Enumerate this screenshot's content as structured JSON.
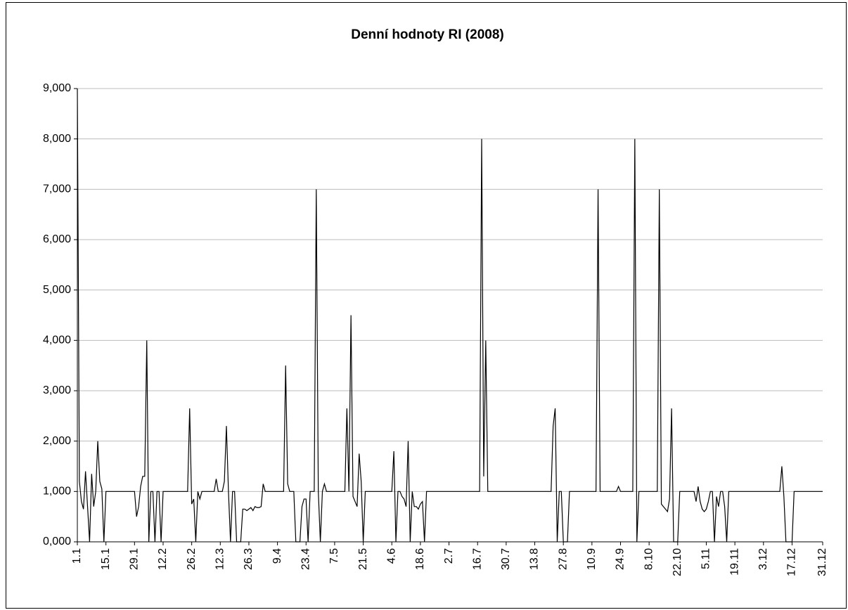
{
  "chart_data": {
    "type": "line",
    "title": "Denní hodnoty RI (2008)",
    "categories": [
      "1.1",
      null,
      null,
      null,
      null,
      null,
      null,
      null,
      null,
      null,
      null,
      null,
      null,
      null,
      "15.1",
      null,
      null,
      null,
      null,
      null,
      null,
      null,
      null,
      null,
      null,
      null,
      null,
      null,
      "29.1",
      null,
      null,
      null,
      null,
      null,
      null,
      null,
      null,
      null,
      null,
      null,
      null,
      null,
      "12.2",
      null,
      null,
      null,
      null,
      null,
      null,
      null,
      null,
      null,
      null,
      null,
      null,
      null,
      "26.2",
      null,
      null,
      null,
      null,
      null,
      null,
      null,
      null,
      null,
      null,
      null,
      null,
      null,
      "12.3",
      null,
      null,
      null,
      null,
      null,
      null,
      null,
      null,
      null,
      null,
      null,
      null,
      null,
      "26.3",
      null,
      null,
      null,
      null,
      null,
      null,
      null,
      null,
      null,
      null,
      null,
      null,
      null,
      "9.4",
      null,
      null,
      null,
      null,
      null,
      null,
      null,
      null,
      null,
      null,
      null,
      null,
      null,
      "23.4",
      null,
      null,
      null,
      null,
      null,
      null,
      null,
      null,
      null,
      null,
      null,
      null,
      null,
      "7.5",
      null,
      null,
      null,
      null,
      null,
      null,
      null,
      null,
      null,
      null,
      null,
      null,
      null,
      "21.5",
      null,
      null,
      null,
      null,
      null,
      null,
      null,
      null,
      null,
      null,
      null,
      null,
      null,
      "4.6",
      null,
      null,
      null,
      null,
      null,
      null,
      null,
      null,
      null,
      null,
      null,
      null,
      null,
      "18.6",
      null,
      null,
      null,
      null,
      null,
      null,
      null,
      null,
      null,
      null,
      null,
      null,
      null,
      "2.7",
      null,
      null,
      null,
      null,
      null,
      null,
      null,
      null,
      null,
      null,
      null,
      null,
      null,
      "16.7",
      null,
      null,
      null,
      null,
      null,
      null,
      null,
      null,
      null,
      null,
      null,
      null,
      null,
      "30.7",
      null,
      null,
      null,
      null,
      null,
      null,
      null,
      null,
      null,
      null,
      null,
      null,
      null,
      "13.8",
      null,
      null,
      null,
      null,
      null,
      null,
      null,
      null,
      null,
      null,
      null,
      null,
      null,
      "27.8",
      null,
      null,
      null,
      null,
      null,
      null,
      null,
      null,
      null,
      null,
      null,
      null,
      null,
      "10.9",
      null,
      null,
      null,
      null,
      null,
      null,
      null,
      null,
      null,
      null,
      null,
      null,
      null,
      "24.9",
      null,
      null,
      null,
      null,
      null,
      null,
      null,
      null,
      null,
      null,
      null,
      null,
      null,
      "8.10",
      null,
      null,
      null,
      null,
      null,
      null,
      null,
      null,
      null,
      null,
      null,
      null,
      null,
      "22.10",
      null,
      null,
      null,
      null,
      null,
      null,
      null,
      null,
      null,
      null,
      null,
      null,
      null,
      "5.11",
      null,
      null,
      null,
      null,
      null,
      null,
      null,
      null,
      null,
      null,
      null,
      null,
      null,
      "19.11",
      null,
      null,
      null,
      null,
      null,
      null,
      null,
      null,
      null,
      null,
      null,
      null,
      null,
      "3.12",
      null,
      null,
      null,
      null,
      null,
      null,
      null,
      null,
      null,
      null,
      null,
      null,
      null,
      "17.12",
      null,
      null,
      null,
      null,
      null,
      null,
      null,
      null,
      null,
      null,
      null,
      null,
      null,
      null,
      "31.12"
    ],
    "values": [
      9,
      1.2,
      0.8,
      0.65,
      1.4,
      0.7,
      0,
      1.35,
      0.7,
      1,
      2,
      1.2,
      1.05,
      0,
      1,
      1,
      1,
      1,
      1,
      1,
      1,
      1,
      1,
      1,
      1,
      1,
      1,
      1,
      1,
      0.5,
      0.7,
      1.1,
      1.3,
      1.3,
      4,
      0,
      1,
      1,
      0,
      1,
      1,
      0,
      1,
      1,
      1,
      1,
      1,
      1,
      1,
      1,
      1,
      1,
      1,
      1,
      1,
      2.65,
      0.75,
      0.85,
      0,
      1,
      0.85,
      1,
      1,
      1,
      1,
      1,
      1,
      1,
      1.25,
      1,
      1,
      1,
      1.2,
      2.3,
      1,
      0,
      1,
      1,
      0,
      0,
      0,
      0.65,
      0.65,
      0.62,
      0.65,
      0.68,
      0.62,
      0.7,
      0.68,
      0.68,
      0.7,
      1.15,
      1,
      1,
      1,
      1,
      1,
      1,
      1,
      1,
      1,
      1,
      3.5,
      1.15,
      1,
      1,
      1,
      0,
      0,
      0,
      0.7,
      0.85,
      0.85,
      0,
      1,
      1,
      1,
      7,
      1,
      0,
      1,
      1.15,
      1,
      1,
      1,
      1,
      1,
      1,
      1,
      1,
      1,
      1,
      2.65,
      1,
      4.5,
      0.9,
      0.8,
      0.7,
      1.75,
      1.2,
      0,
      1,
      1,
      1,
      1,
      1,
      1,
      1,
      1,
      1,
      1,
      1,
      1,
      1,
      1,
      1.8,
      0,
      1,
      1,
      0.9,
      0.85,
      0.7,
      2,
      0,
      1,
      0.7,
      0.7,
      0.65,
      0.75,
      0.8,
      0,
      1,
      1,
      1,
      1,
      1,
      1,
      1,
      1,
      1,
      1,
      1,
      1,
      1,
      1,
      1,
      1,
      1,
      1,
      1,
      1,
      1,
      1,
      1,
      1,
      1,
      1,
      1,
      8,
      1.3,
      4,
      1,
      1,
      1,
      1,
      1,
      1,
      1,
      1,
      1,
      1,
      1,
      1,
      1,
      1,
      1,
      1,
      1,
      1,
      1,
      1,
      1,
      1,
      1,
      1,
      1,
      1,
      1,
      1,
      1,
      1,
      1,
      1,
      2.3,
      2.65,
      0,
      1,
      1,
      0,
      0,
      0,
      1,
      1,
      1,
      1,
      1,
      1,
      1,
      1,
      1,
      1,
      1,
      1,
      1,
      1,
      7,
      1,
      1,
      1,
      1,
      1,
      1,
      1,
      1,
      1,
      1.1,
      1,
      1,
      1,
      1,
      1,
      1,
      1,
      8,
      0,
      1,
      1,
      1,
      1,
      1,
      1,
      1,
      1,
      1,
      1,
      7,
      0.75,
      0.7,
      0.65,
      0.6,
      0.85,
      2.65,
      0,
      0,
      0,
      1,
      1,
      1,
      1,
      1,
      1,
      1,
      1,
      0.8,
      1.1,
      0.8,
      0.65,
      0.6,
      0.65,
      0.8,
      1,
      1,
      0,
      0.9,
      0.7,
      1,
      1,
      0.7,
      0,
      1,
      1,
      1,
      1,
      1,
      1,
      1,
      1,
      1,
      1,
      1,
      1,
      1,
      1,
      1,
      1,
      1,
      1,
      1,
      1,
      1,
      1,
      1,
      1,
      1,
      1,
      1.5,
      0.9,
      0,
      0,
      0,
      0,
      1,
      1,
      1,
      1,
      1,
      1,
      1,
      1,
      1,
      1,
      1,
      1,
      1,
      1,
      1
    ],
    "color": "#000000",
    "ylim": [
      0,
      9
    ],
    "yticks": [
      {
        "value": 0,
        "label": "0,000"
      },
      {
        "value": 1,
        "label": "1,000"
      },
      {
        "value": 2,
        "label": "2,000"
      },
      {
        "value": 3,
        "label": "3,000"
      },
      {
        "value": 4,
        "label": "4,000"
      },
      {
        "value": 5,
        "label": "5,000"
      },
      {
        "value": 6,
        "label": "6,000"
      },
      {
        "value": 7,
        "label": "7,000"
      },
      {
        "value": 8,
        "label": "8,000"
      },
      {
        "value": 9,
        "label": "9,000"
      }
    ],
    "grid": true
  }
}
